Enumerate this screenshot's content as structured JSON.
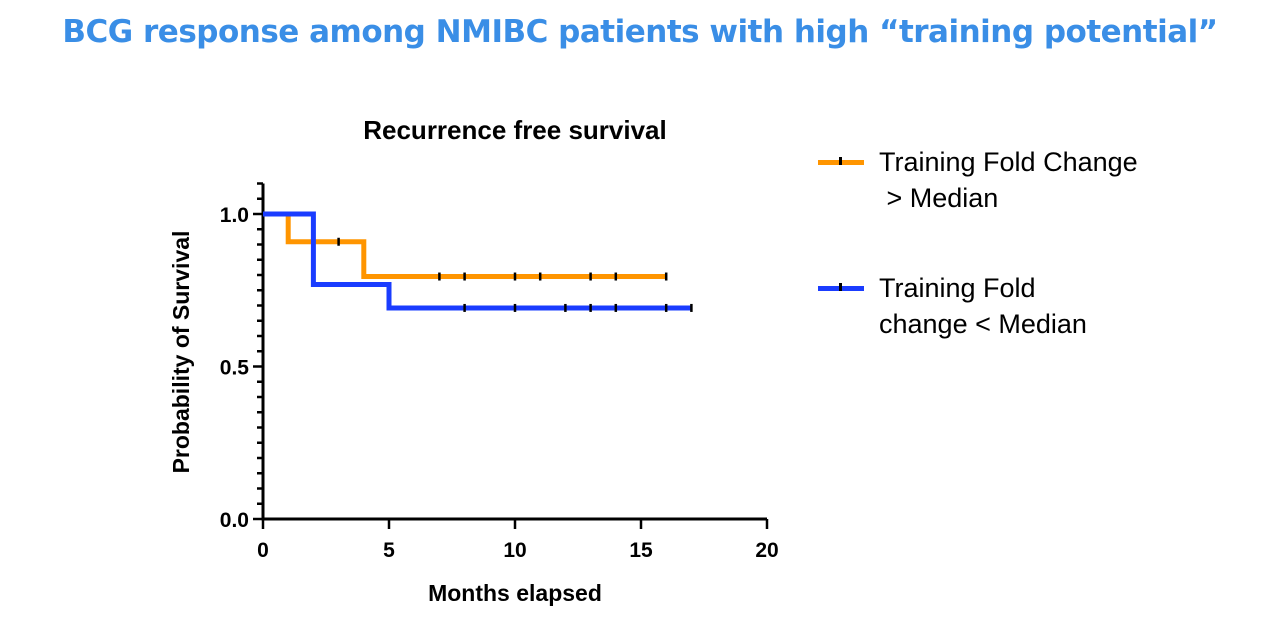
{
  "page_title": "BCG response among NMIBC patients with high “training potential”",
  "chart_data": {
    "type": "line",
    "subtype": "kaplan-meier step",
    "title": "Recurrence free survival",
    "xlabel": "Months elapsed",
    "ylabel": "Probability of Survival",
    "xlim": [
      0,
      20
    ],
    "ylim": [
      0,
      1.1
    ],
    "xticks": [
      "0",
      "5",
      "10",
      "15",
      "20"
    ],
    "yticks": [
      "0.0",
      "0.5",
      "1.0"
    ],
    "legend_position": "right",
    "series": [
      {
        "name": "Training Fold Change\n > Median",
        "color": "#ff9500",
        "steps": [
          [
            0,
            1.0
          ],
          [
            1,
            0.909
          ],
          [
            4,
            0.795
          ]
        ],
        "end": 16,
        "censored": [
          2,
          3,
          7,
          8,
          10,
          11,
          13,
          14,
          16
        ]
      },
      {
        "name": "Training Fold\nchange < Median",
        "color": "#1a3cff",
        "steps": [
          [
            0,
            1.0
          ],
          [
            2,
            0.769
          ],
          [
            5,
            0.692
          ]
        ],
        "end": 17,
        "censored": [
          8,
          10,
          12,
          13,
          14,
          16,
          17
        ]
      }
    ]
  }
}
